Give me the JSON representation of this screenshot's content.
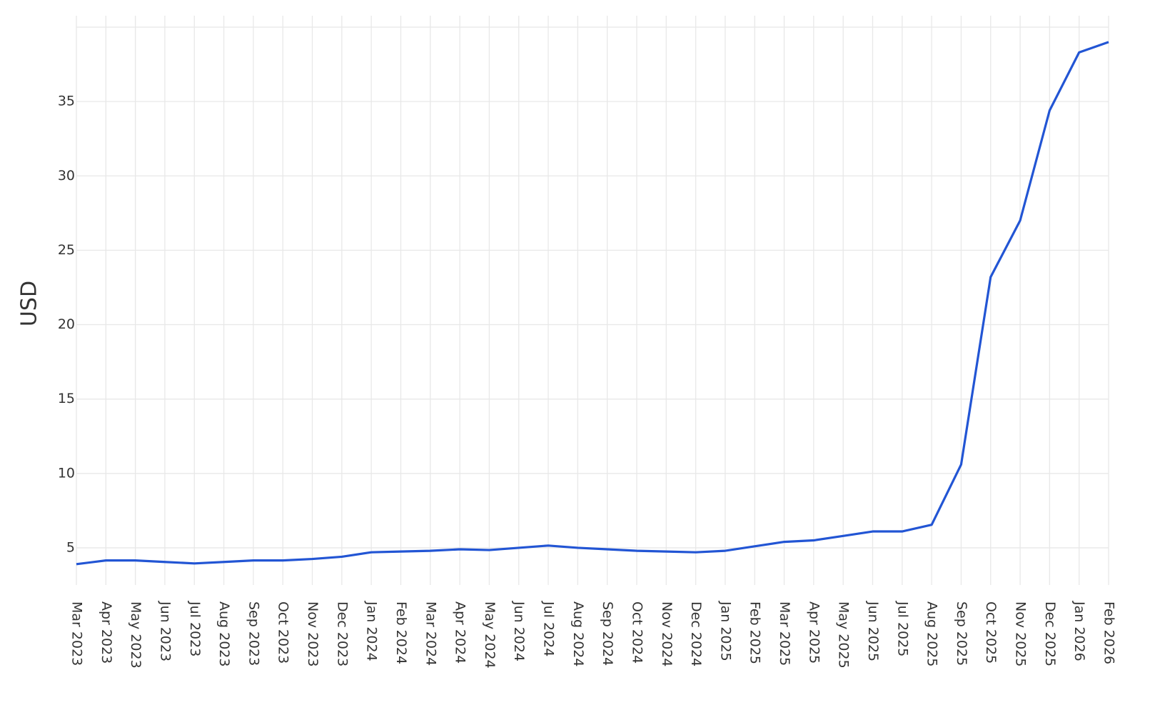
{
  "chart_data": {
    "type": "line",
    "y_label": "USD",
    "categories": [
      "Mar 2023",
      "Apr 2023",
      "May 2023",
      "Jun 2023",
      "Jul 2023",
      "Aug 2023",
      "Sep 2023",
      "Oct 2023",
      "Nov 2023",
      "Dec 2023",
      "Jan 2024",
      "Feb 2024",
      "Mar 2024",
      "Apr 2024",
      "May 2024",
      "Jun 2024",
      "Jul 2024",
      "Aug 2024",
      "Sep 2024",
      "Oct 2024",
      "Nov 2024",
      "Dec 2024",
      "Jan 2025",
      "Feb 2025",
      "Mar 2025",
      "Apr 2025",
      "May 2025",
      "Jun 2025",
      "Jul 2025",
      "Aug 2025",
      "Sep 2025",
      "Oct 2025",
      "Nov 2025",
      "Dec 2025",
      "Jan 2026",
      "Feb 2026"
    ],
    "series": [
      {
        "color": "#2255d4",
        "values": [
          3.9,
          4.15,
          4.15,
          4.05,
          3.95,
          4.05,
          4.15,
          4.15,
          4.25,
          4.4,
          4.7,
          4.75,
          4.8,
          4.9,
          4.85,
          5.0,
          5.15,
          5.0,
          4.9,
          4.8,
          4.75,
          4.7,
          4.8,
          5.1,
          5.4,
          5.5,
          5.8,
          6.1,
          6.1,
          6.55,
          10.6,
          23.2,
          27.0,
          34.4,
          38.3,
          39.0
        ]
      }
    ],
    "ylim": [
      2.5,
      40
    ],
    "yticks": [
      5,
      10,
      15,
      20,
      25,
      30,
      35
    ],
    "grid": true
  }
}
